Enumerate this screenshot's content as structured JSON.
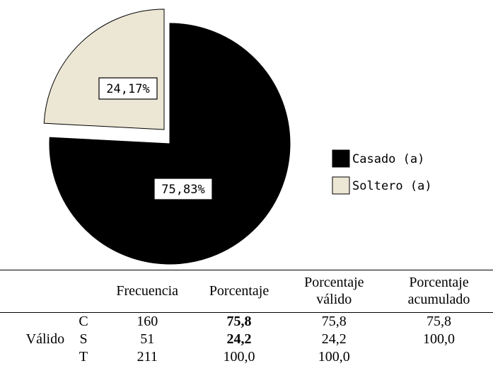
{
  "chart_data": {
    "type": "pie",
    "categories": [
      "Casado (a)",
      "Soltero (a)"
    ],
    "values": [
      75.83,
      24.17
    ],
    "value_labels": [
      "75,83%",
      "24,17%"
    ],
    "colors": [
      "#000000",
      "#ece6d4"
    ],
    "legend": "right"
  },
  "table": {
    "columns": [
      "Frecuencia",
      "Porcentaje",
      "Porcentaje válido",
      "Porcentaje acumulado"
    ],
    "group": "Válido",
    "rows": [
      {
        "label": "C",
        "cells": [
          "160",
          "75,8",
          "75,8",
          "75,8"
        ]
      },
      {
        "label": "S",
        "cells": [
          "51",
          "24,2",
          "24,2",
          "100,0"
        ]
      },
      {
        "label": "T",
        "cells": [
          "211",
          "100,0",
          "100,0"
        ]
      }
    ]
  }
}
